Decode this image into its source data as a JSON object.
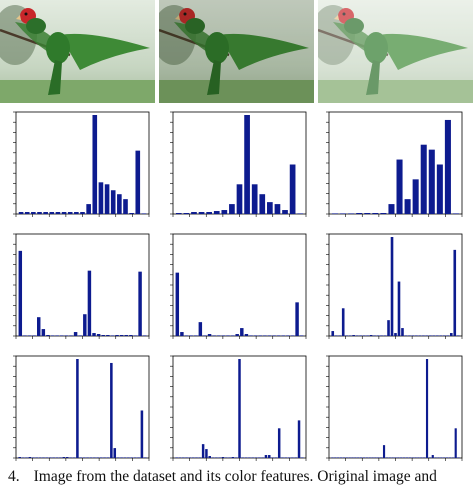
{
  "caption": {
    "number": "4.",
    "text": "Image from the dataset and its color features. Original image and"
  },
  "photos": [
    {
      "variant": "original",
      "tint": "#ffffff",
      "tint_opacity": 0
    },
    {
      "variant": "darkened",
      "tint": "#1b2a10",
      "tint_opacity": 0.18
    },
    {
      "variant": "brightened",
      "tint": "#ffffff",
      "tint_opacity": 0.3
    }
  ],
  "colors": {
    "bar": "#0d1b8f",
    "axis": "#000000",
    "sky": "#c7d6c2",
    "grass": "#7ea86a",
    "parrot_green": "#2f7a2b",
    "parrot_head": "#c8262a"
  },
  "chart_data": [
    {
      "type": "bar",
      "row": 0,
      "col": 0,
      "values": [
        0.02,
        0.02,
        0.02,
        0.02,
        0.02,
        0.02,
        0.02,
        0.02,
        0.02,
        0.02,
        0.02,
        0.1,
        1.0,
        0.32,
        0.3,
        0.24,
        0.2,
        0.15,
        0.01,
        0.64,
        0.0
      ],
      "ylim": [
        0,
        1.0
      ],
      "x_ticks": true,
      "y_ticks": true
    },
    {
      "type": "bar",
      "row": 0,
      "col": 1,
      "values": [
        0.01,
        0.01,
        0.02,
        0.02,
        0.02,
        0.03,
        0.04,
        0.1,
        0.3,
        1.0,
        0.3,
        0.2,
        0.12,
        0.1,
        0.04,
        0.5,
        0.0
      ],
      "ylim": [
        0,
        1.0
      ],
      "x_ticks": true,
      "y_ticks": true
    },
    {
      "type": "bar",
      "row": 0,
      "col": 2,
      "values": [
        0.0,
        0.0,
        0.0,
        0.01,
        0.01,
        0.01,
        0.01,
        0.1,
        0.55,
        0.15,
        0.35,
        0.7,
        0.65,
        0.5,
        0.95,
        0.0
      ],
      "ylim": [
        0,
        1.0
      ],
      "x_ticks": true,
      "y_ticks": true
    },
    {
      "type": "bar",
      "row": 1,
      "col": 0,
      "values": [
        0.86,
        0.0,
        0.0,
        0.0,
        0.19,
        0.07,
        0.01,
        0.0,
        0.0,
        0.0,
        0.0,
        0.0,
        0.04,
        0.0,
        0.22,
        0.66,
        0.03,
        0.02,
        0.01,
        0.01,
        0.0,
        0.01,
        0.01,
        0.01,
        0.01,
        0.0,
        0.65,
        0.0
      ],
      "ylim": [
        0,
        1.0
      ],
      "x_ticks": true,
      "y_ticks": true
    },
    {
      "type": "bar",
      "row": 1,
      "col": 1,
      "values": [
        0.64,
        0.04,
        0.0,
        0.0,
        0.0,
        0.14,
        0.0,
        0.02,
        0.0,
        0.0,
        0.0,
        0.0,
        0.0,
        0.02,
        0.08,
        0.02,
        0.0,
        0.0,
        0.0,
        0.0,
        0.0,
        0.0,
        0.0,
        0.0,
        0.0,
        0.0,
        0.34,
        0.0
      ],
      "ylim": [
        0,
        1.0
      ],
      "x_ticks": true,
      "y_ticks": true
    },
    {
      "type": "bar",
      "row": 1,
      "col": 2,
      "values": [
        0.05,
        0.0,
        0.0,
        0.28,
        0.0,
        0.0,
        0.01,
        0.0,
        0.0,
        0.0,
        0.0,
        0.01,
        0.0,
        0.0,
        0.0,
        0.0,
        0.16,
        1.0,
        0.03,
        0.55,
        0.08,
        0.0,
        0.0,
        0.0,
        0.0,
        0.0,
        0.0,
        0.0,
        0.0,
        0.0,
        0.0,
        0.0,
        0.0,
        0.0,
        0.03,
        0.87,
        0.0
      ],
      "ylim": [
        0,
        1.0
      ],
      "x_ticks": true,
      "y_ticks": true
    },
    {
      "type": "bar",
      "row": 2,
      "col": 0,
      "values": [
        0.01,
        0.0,
        0.0,
        0.01,
        0.0,
        0.0,
        0.0,
        0.0,
        0.0,
        0.0,
        0.0,
        0.0,
        0.0,
        0.01,
        0.01,
        0.0,
        0.0,
        1.0,
        0.0,
        0.0,
        0.0,
        0.0,
        0.0,
        0.0,
        0.0,
        0.0,
        0.0,
        0.96,
        0.1,
        0.0,
        0.0,
        0.0,
        0.0,
        0.0,
        0.0,
        0.0,
        0.48,
        0.0
      ],
      "ylim": [
        0,
        1.0
      ],
      "x_ticks": true,
      "y_ticks": true
    },
    {
      "type": "bar",
      "row": 2,
      "col": 1,
      "values": [
        0.0,
        0.0,
        0.0,
        0.0,
        0.0,
        0.0,
        0.0,
        0.0,
        0.14,
        0.09,
        0.02,
        0.0,
        0.0,
        0.0,
        0.01,
        0.0,
        0.0,
        0.01,
        0.0,
        1.0,
        0.0,
        0.0,
        0.0,
        0.0,
        0.0,
        0.0,
        0.0,
        0.03,
        0.03,
        0.0,
        0.0,
        0.3,
        0.0,
        0.0,
        0.0,
        0.0,
        0.0,
        0.38,
        0.0
      ],
      "ylim": [
        0,
        1.0
      ],
      "x_ticks": true,
      "y_ticks": true
    },
    {
      "type": "bar",
      "row": 2,
      "col": 2,
      "values": [
        0.0,
        0.0,
        0.0,
        0.0,
        0.0,
        0.0,
        0.0,
        0.0,
        0.0,
        0.0,
        0.0,
        0.0,
        0.0,
        0.0,
        0.0,
        0.0,
        0.0,
        0.0,
        0.13,
        0.0,
        0.0,
        0.0,
        0.0,
        0.0,
        0.0,
        0.0,
        0.0,
        0.0,
        0.0,
        0.0,
        0.0,
        0.0,
        0.0,
        1.0,
        0.0,
        0.03,
        0.0,
        0.0,
        0.0,
        0.0,
        0.0,
        0.0,
        0.0,
        0.3,
        0.0
      ],
      "ylim": [
        0,
        1.0
      ],
      "x_ticks": true,
      "y_ticks": true
    }
  ]
}
